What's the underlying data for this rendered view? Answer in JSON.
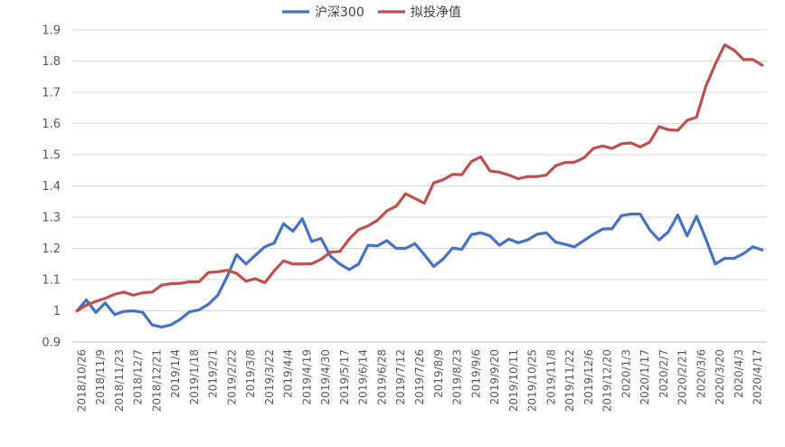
{
  "chart_data": {
    "type": "line",
    "ylim": [
      0.9,
      1.9
    ],
    "yticks": [
      "0.9",
      "1",
      "1.1",
      "1.2",
      "1.3",
      "1.4",
      "1.5",
      "1.6",
      "1.7",
      "1.8",
      "1.9"
    ],
    "x_labels": [
      "2018/10/26",
      "2018/11/9",
      "2018/11/23",
      "2018/12/7",
      "2018/12/21",
      "2019/1/4",
      "2019/1/18",
      "2019/2/1",
      "2019/2/22",
      "2019/3/8",
      "2019/3/22",
      "2019/4/4",
      "2019/4/19",
      "2019/4/30",
      "2019/5/17",
      "2019/6/14",
      "2019/6/28",
      "2019/7/12",
      "2019/7/26",
      "2019/8/9",
      "2019/8/23",
      "2019/9/6",
      "2019/9/20",
      "2019/10/11",
      "2019/10/25",
      "2019/11/8",
      "2019/11/22",
      "2019/12/6",
      "2019/12/20",
      "2020/1/3",
      "2020/1/17",
      "2020/2/7",
      "2020/2/21",
      "2020/3/6",
      "2020/3/20",
      "2020/4/3",
      "2020/4/17"
    ],
    "grid": true,
    "legend_position": "top",
    "series": [
      {
        "name": "沪深300",
        "color": "#4472c4",
        "values": [
          1.0,
          1.035,
          0.995,
          1.025,
          0.988,
          0.998,
          1.0,
          0.995,
          0.955,
          0.948,
          0.955,
          0.973,
          0.997,
          1.003,
          1.021,
          1.05,
          1.11,
          1.18,
          1.15,
          1.178,
          1.205,
          1.217,
          1.279,
          1.255,
          1.295,
          1.222,
          1.232,
          1.175,
          1.15,
          1.132,
          1.15,
          1.21,
          1.208,
          1.225,
          1.2,
          1.2,
          1.215,
          1.18,
          1.142,
          1.166,
          1.201,
          1.197,
          1.244,
          1.25,
          1.24,
          1.21,
          1.23,
          1.218,
          1.227,
          1.245,
          1.25,
          1.22,
          1.213,
          1.205,
          1.225,
          1.245,
          1.262,
          1.263,
          1.305,
          1.31,
          1.31,
          1.26,
          1.227,
          1.253,
          1.307,
          1.24,
          1.303,
          1.23,
          1.15,
          1.168,
          1.168,
          1.183,
          1.205,
          1.195
        ]
      },
      {
        "name": "拟投净值",
        "color": "#c0504d",
        "values": [
          1.0,
          1.018,
          1.03,
          1.04,
          1.053,
          1.06,
          1.05,
          1.058,
          1.06,
          1.082,
          1.087,
          1.088,
          1.093,
          1.093,
          1.123,
          1.125,
          1.13,
          1.12,
          1.095,
          1.103,
          1.09,
          1.128,
          1.16,
          1.15,
          1.15,
          1.151,
          1.165,
          1.188,
          1.19,
          1.23,
          1.26,
          1.272,
          1.29,
          1.32,
          1.335,
          1.375,
          1.36,
          1.345,
          1.41,
          1.42,
          1.437,
          1.436,
          1.478,
          1.493,
          1.448,
          1.444,
          1.435,
          1.423,
          1.43,
          1.43,
          1.435,
          1.465,
          1.475,
          1.476,
          1.49,
          1.52,
          1.528,
          1.52,
          1.535,
          1.538,
          1.525,
          1.54,
          1.59,
          1.58,
          1.578,
          1.61,
          1.62,
          1.72,
          1.79,
          1.852,
          1.835,
          1.805,
          1.805,
          1.787
        ]
      }
    ]
  }
}
